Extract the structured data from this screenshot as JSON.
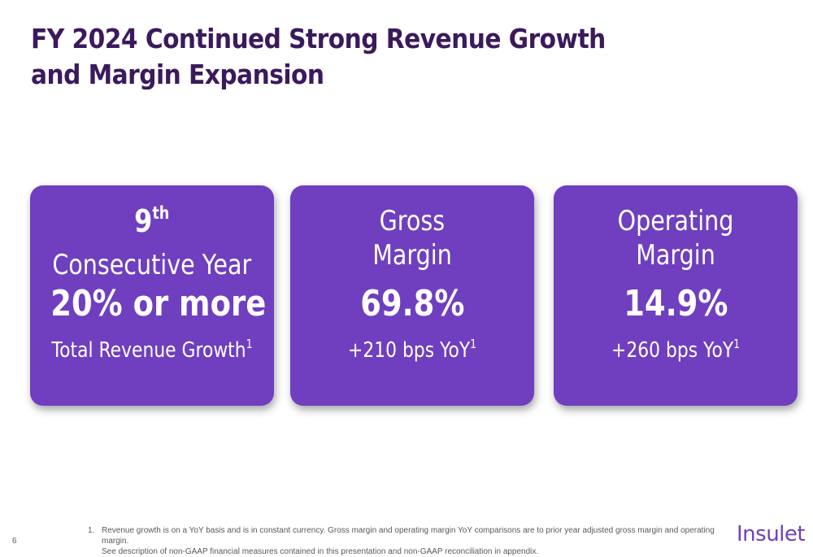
{
  "slide": {
    "title_line1": "FY 2024 Continued Strong Revenue Growth",
    "title_line2": "and Margin Expansion"
  },
  "cards": [
    {
      "ordinal_number": "9",
      "ordinal_suffix": "th",
      "subtitle": "Consecutive Year",
      "value": "20% or more",
      "caption": "Total Revenue Growth",
      "caption_note": "1"
    },
    {
      "label_line1": "Gross",
      "label_line2": "Margin",
      "value": "69.8%",
      "caption": "+210 bps YoY",
      "caption_note": "1"
    },
    {
      "label_line1": "Operating",
      "label_line2": "Margin",
      "value": "14.9%",
      "caption": "+260 bps YoY",
      "caption_note": "1"
    }
  ],
  "footnote": {
    "number": "1.",
    "line1": "Revenue growth is on a YoY basis and is in constant currency. Gross margin and operating margin YoY comparisons are to prior year adjusted gross margin and operating margin.",
    "line2": "See description of non-GAAP financial measures contained in this presentation and non-GAAP reconciliation in appendix."
  },
  "page_number": "6",
  "logo_text": "Insulet"
}
